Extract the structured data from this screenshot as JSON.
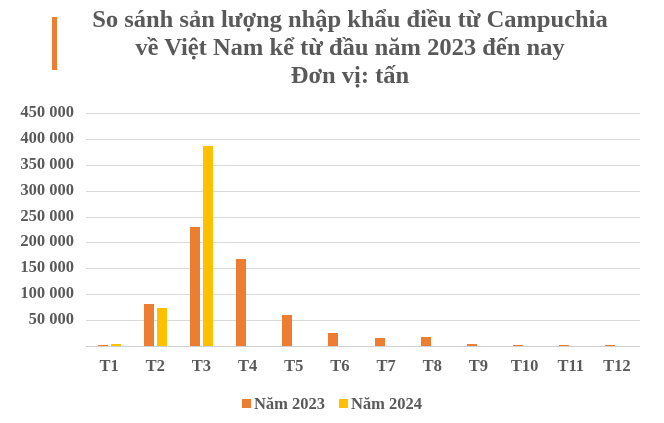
{
  "header": {
    "title_lines": [
      "So sánh sản lượng nhập khẩu điều từ Campuchia",
      "về Việt Nam kể từ đầu năm 2023 đến nay",
      "Đơn vị: tấn"
    ],
    "accent_color": "#ED7D31"
  },
  "chart_data": {
    "type": "bar",
    "title": "So sánh sản lượng nhập khẩu điều từ Campuchia về Việt Nam kể từ đầu năm 2023 đến nay",
    "subtitle": "Đơn vị: tấn",
    "xlabel": "",
    "ylabel": "",
    "categories": [
      "T1",
      "T2",
      "T3",
      "T4",
      "T5",
      "T6",
      "T7",
      "T8",
      "T9",
      "T10",
      "T11",
      "T12"
    ],
    "series": [
      {
        "name": "Năm 2023",
        "color": "#ED7D31",
        "values": [
          2000,
          82000,
          229000,
          168500,
          60000,
          25500,
          15000,
          17800,
          3500,
          1500,
          1500,
          1500
        ]
      },
      {
        "name": "Năm 2024",
        "color": "#FFC000",
        "values": [
          3800,
          72500,
          386500,
          null,
          null,
          null,
          null,
          null,
          null,
          null,
          null,
          null
        ]
      }
    ],
    "ylim": [
      0,
      450000
    ],
    "yticks": [
      0,
      50000,
      100000,
      150000,
      200000,
      250000,
      300000,
      350000,
      400000,
      450000
    ],
    "ytick_labels": [
      "",
      "50 000",
      "100 000",
      "150 000",
      "200 000",
      "250 000",
      "300 000",
      "350 000",
      "400 000",
      "450 000"
    ],
    "grid": true,
    "legend_position": "bottom"
  }
}
